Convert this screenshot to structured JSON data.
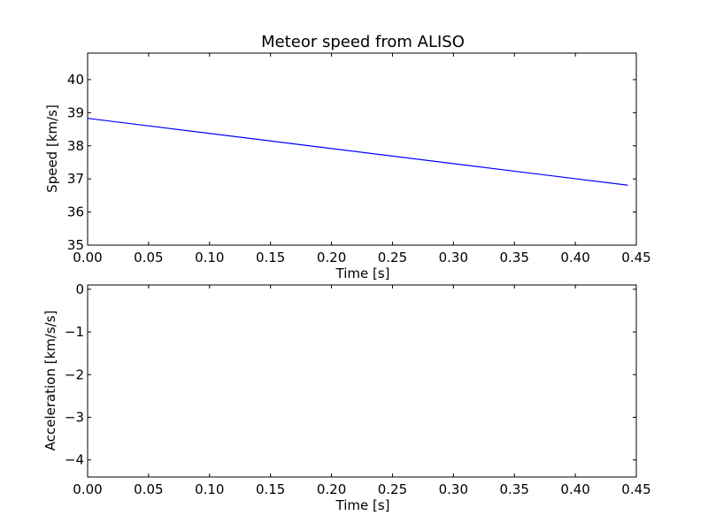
{
  "colors": {
    "line": "#0000ff",
    "axes": "#000000",
    "background": "#ffffff"
  },
  "chart_data": [
    {
      "type": "line",
      "title": "Meteor speed from  ALISO",
      "xlabel": "Time [s]",
      "ylabel": "Speed [km/s]",
      "xlim": [
        0.0,
        0.45
      ],
      "ylim": [
        35,
        40.8
      ],
      "xticks": [
        "0.00",
        "0.05",
        "0.10",
        "0.15",
        "0.20",
        "0.25",
        "0.30",
        "0.35",
        "0.40",
        "0.45"
      ],
      "yticks": [
        "35",
        "36",
        "37",
        "38",
        "39",
        "40"
      ],
      "grid": false,
      "series": [
        {
          "x": [
            0.0,
            0.443
          ],
          "y": [
            38.83,
            36.81
          ]
        }
      ]
    },
    {
      "type": "line",
      "title": "",
      "xlabel": "Time [s]",
      "ylabel": "Acceleration [km/s/s]",
      "xlim": [
        0.0,
        0.45
      ],
      "ylim": [
        -4.4,
        0.1
      ],
      "xticks": [
        "0.00",
        "0.05",
        "0.10",
        "0.15",
        "0.20",
        "0.25",
        "0.30",
        "0.35",
        "0.40",
        "0.45"
      ],
      "yticks": [
        "0",
        "−1",
        "−2",
        "−3",
        "−4"
      ],
      "grid": false,
      "series": []
    }
  ]
}
